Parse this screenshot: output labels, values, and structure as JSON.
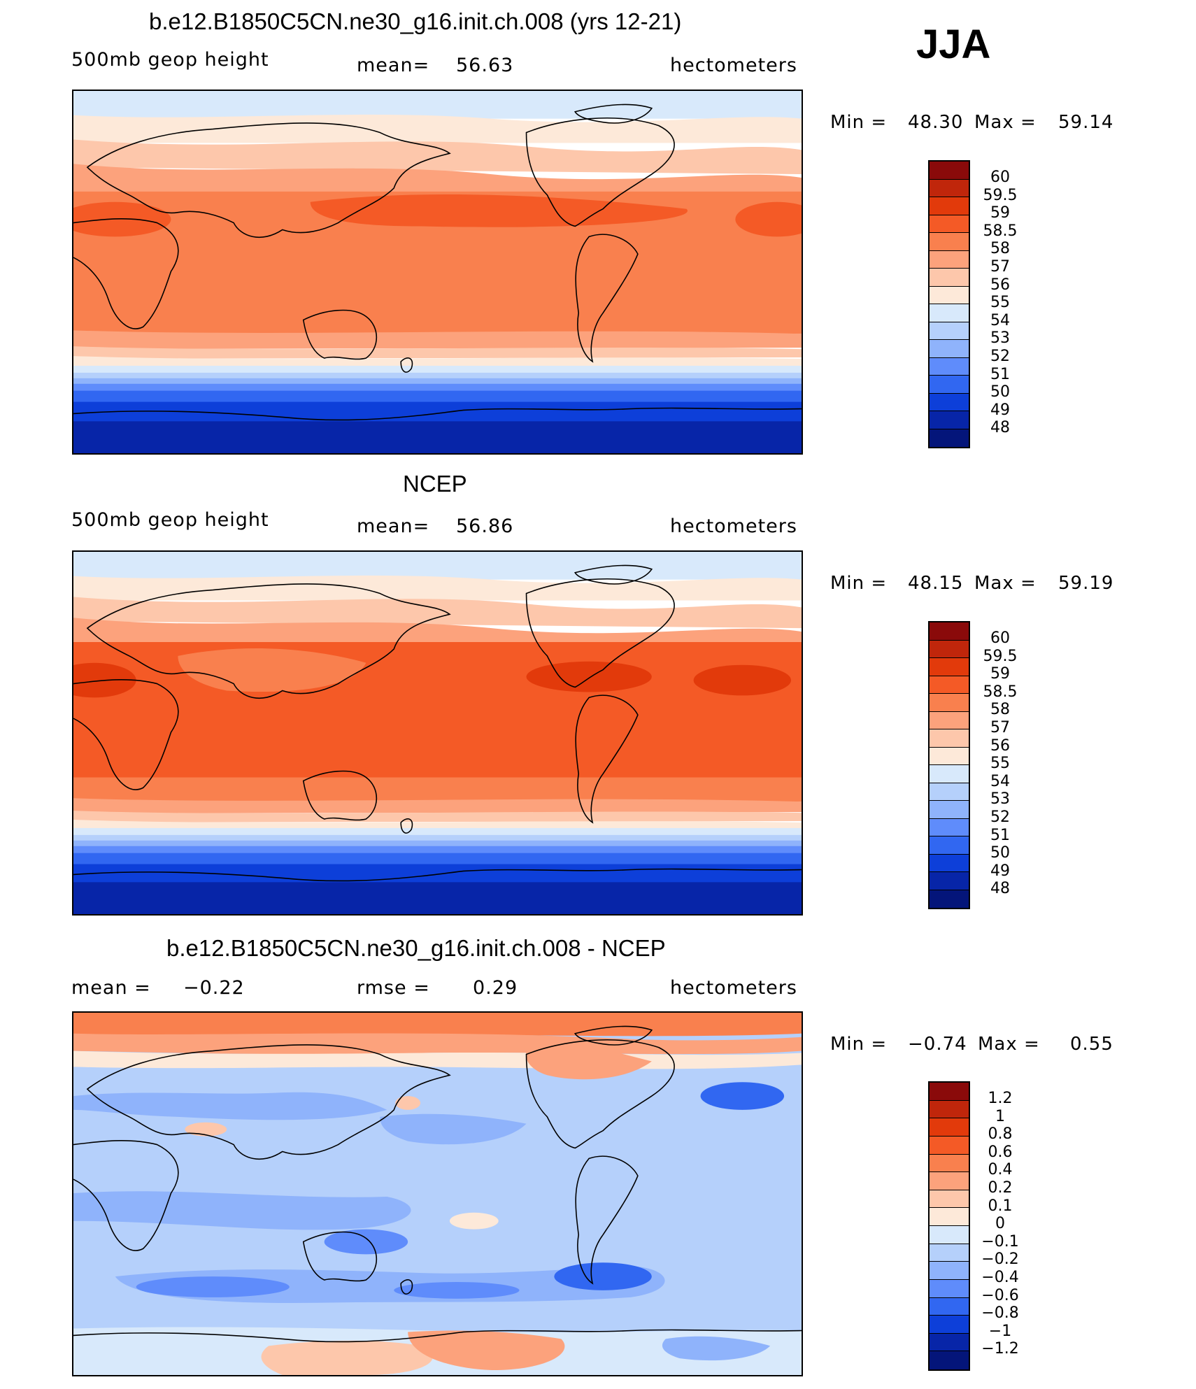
{
  "season": "JJA",
  "panels": [
    {
      "title": "b.e12.B1850C5CN.ne30_g16.init.ch.008 (yrs 12-21)",
      "left_label": "500mb geop height",
      "center_label": "mean=",
      "center_value": "56.63",
      "right_label": "hectometers",
      "min_label": "Min =",
      "min_value": "48.30",
      "max_label": "Max =",
      "max_value": "59.14",
      "colorbar_labels": [
        "60",
        "59.5",
        "59",
        "58.5",
        "58",
        "57",
        "56",
        "55",
        "54",
        "53",
        "52",
        "51",
        "50",
        "49",
        "48"
      ],
      "colorbar_colors": [
        "#8a0a0a",
        "#c0260b",
        "#e23a0b",
        "#f45a26",
        "#f9804e",
        "#fca27c",
        "#fdc7ab",
        "#fde9d9",
        "#d8e9fb",
        "#b5d0fb",
        "#8fb3fb",
        "#5f8cfb",
        "#3167f1",
        "#0d3fd9",
        "#0725a8",
        "#04157a"
      ]
    },
    {
      "title": "NCEP",
      "left_label": "500mb geop height",
      "center_label": "mean=",
      "center_value": "56.86",
      "right_label": "hectometers",
      "min_label": "Min =",
      "min_value": "48.15",
      "max_label": "Max =",
      "max_value": "59.19",
      "colorbar_labels": [
        "60",
        "59.5",
        "59",
        "58.5",
        "58",
        "57",
        "56",
        "55",
        "54",
        "53",
        "52",
        "51",
        "50",
        "49",
        "48"
      ],
      "colorbar_colors": [
        "#8a0a0a",
        "#c0260b",
        "#e23a0b",
        "#f45a26",
        "#f9804e",
        "#fca27c",
        "#fdc7ab",
        "#fde9d9",
        "#d8e9fb",
        "#b5d0fb",
        "#8fb3fb",
        "#5f8cfb",
        "#3167f1",
        "#0d3fd9",
        "#0725a8",
        "#04157a"
      ]
    },
    {
      "title": "b.e12.B1850C5CN.ne30_g16.init.ch.008 - NCEP",
      "left_label": "mean =",
      "left_value": "−0.22",
      "center_label": "rmse =",
      "center_value": "0.29",
      "right_label": "hectometers",
      "min_label": "Min =",
      "min_value": "−0.74",
      "max_label": "Max =",
      "max_value": "0.55",
      "colorbar_labels": [
        "1.2",
        "1",
        "0.8",
        "0.6",
        "0.4",
        "0.2",
        "0.1",
        "0",
        "−0.1",
        "−0.2",
        "−0.4",
        "−0.6",
        "−0.8",
        "−1",
        "−1.2"
      ],
      "colorbar_colors": [
        "#8a0a0a",
        "#c0260b",
        "#e23a0b",
        "#f45a26",
        "#f9804e",
        "#fca27c",
        "#fdc7ab",
        "#fde9d9",
        "#d8e9fb",
        "#b5d0fb",
        "#8fb3fb",
        "#5f8cfb",
        "#3167f1",
        "#0d3fd9",
        "#0725a8",
        "#04157a"
      ]
    }
  ]
}
